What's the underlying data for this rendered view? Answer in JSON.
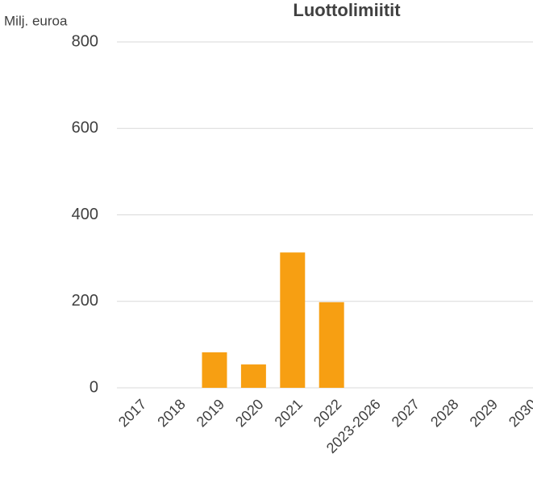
{
  "chart_data": {
    "type": "bar",
    "title": "Luottolimiitit",
    "y_label": "Milj. euroa",
    "categories": [
      "2017",
      "2018",
      "2019",
      "2020",
      "2021",
      "2022",
      "2023-2026",
      "2027",
      "2028",
      "2029",
      "2030"
    ],
    "values": [
      null,
      null,
      82,
      54,
      313,
      198,
      null,
      null,
      null,
      null,
      null
    ],
    "color": "#f79f12",
    "ylim": [
      0,
      800
    ],
    "yticks": [
      0,
      200,
      400,
      600,
      800
    ],
    "grid": true
  }
}
